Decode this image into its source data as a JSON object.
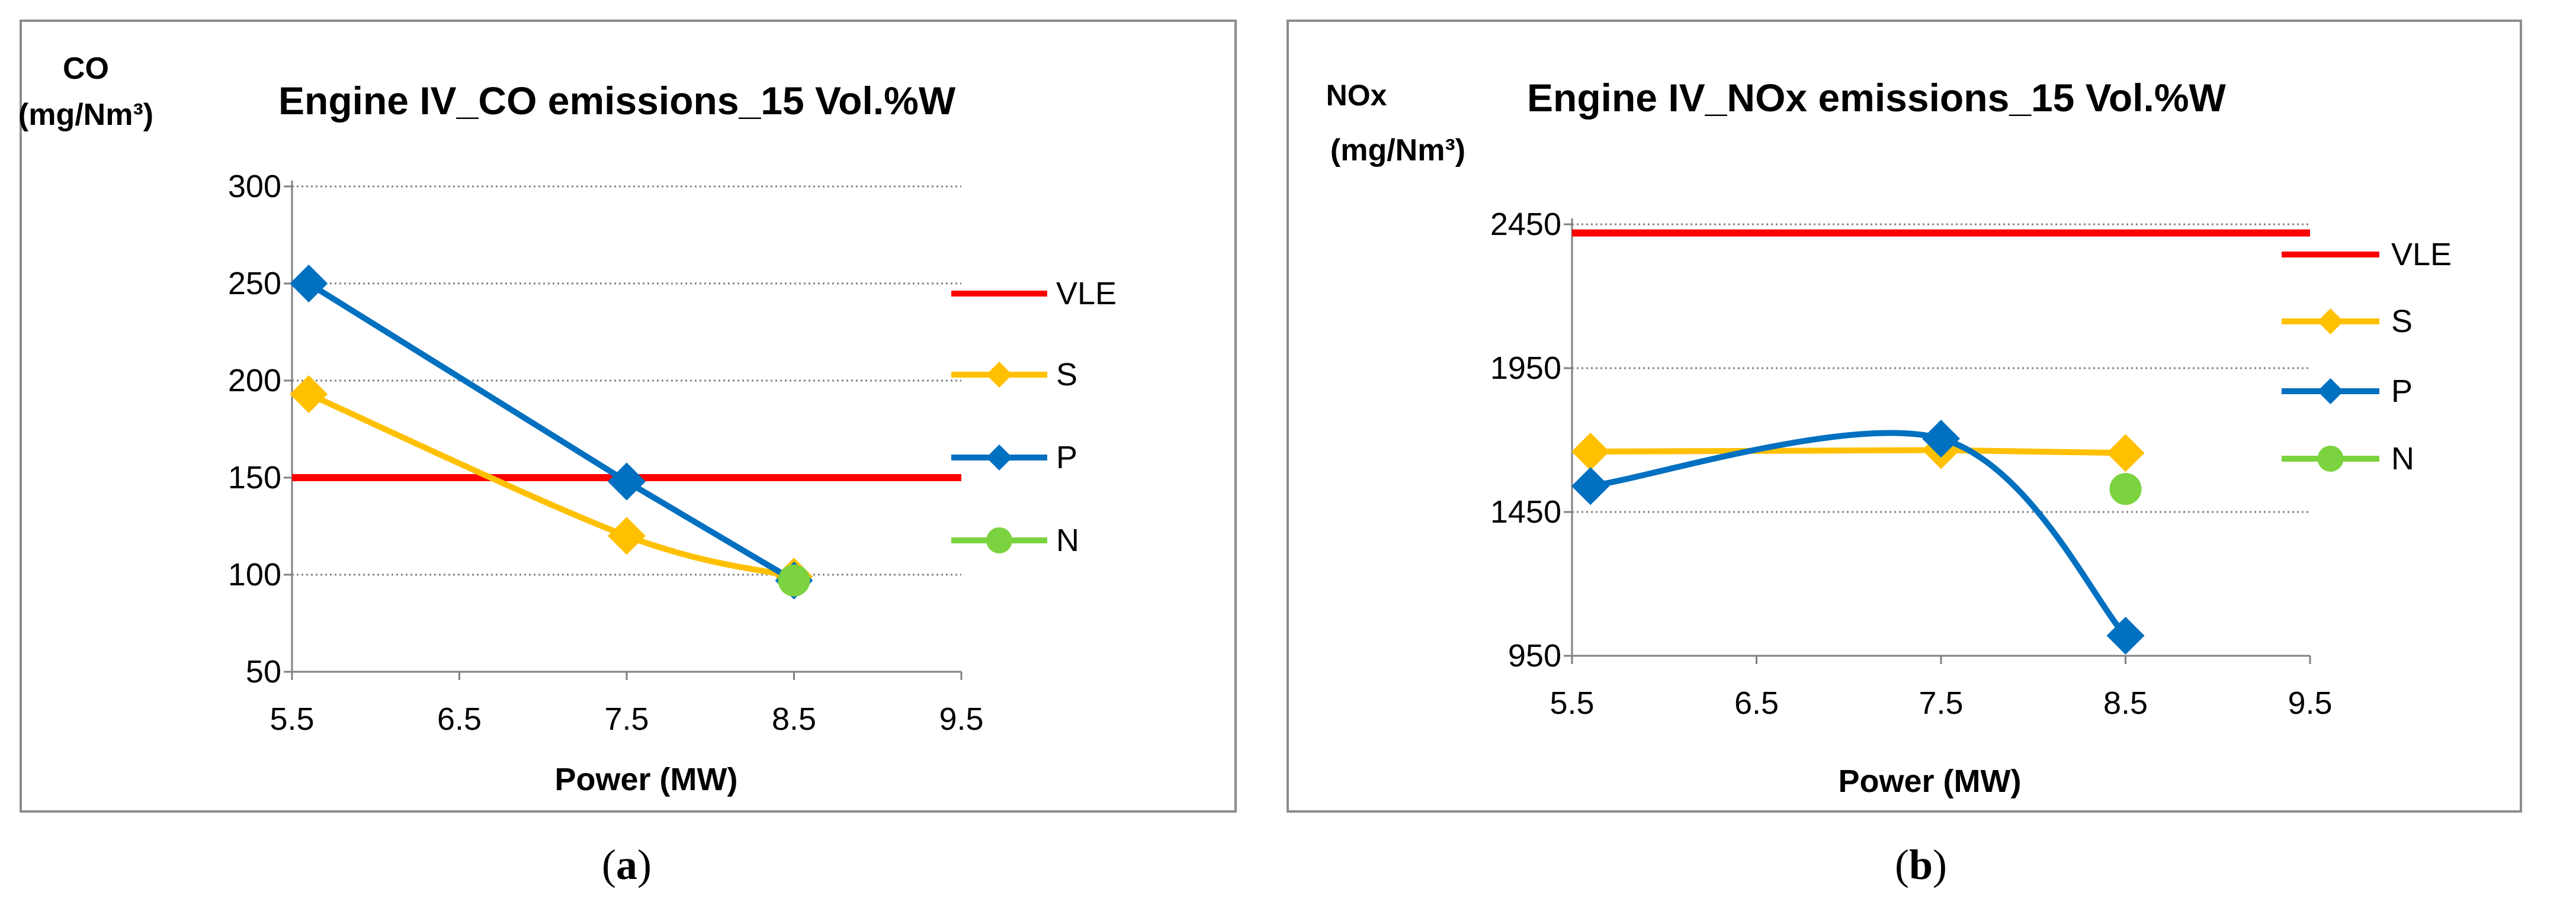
{
  "captions": {
    "a": "a",
    "b": "b"
  },
  "chart_data": [
    {
      "type": "line",
      "title": "Engine IV_CO emissions_15 Vol.%W",
      "ylabel_line1": "CO",
      "ylabel_line2": "(mg/Nm³)",
      "xlabel": "Power (MW)",
      "xlim": [
        5.5,
        9.5
      ],
      "ylim": [
        50,
        300
      ],
      "xticks": [
        "5.5",
        "6.5",
        "7.5",
        "8.5",
        "9.5"
      ],
      "yticks": [
        "50",
        "100",
        "150",
        "200",
        "250",
        "300"
      ],
      "series": [
        {
          "name": "VLE",
          "color": "#ff0000",
          "marker": "none",
          "smooth": false,
          "x": [
            5.5,
            9.5
          ],
          "y": [
            150,
            150
          ]
        },
        {
          "name": "S",
          "color": "#ffc000",
          "marker": "diamond",
          "smooth": true,
          "x": [
            5.6,
            7.5,
            8.5
          ],
          "y": [
            193,
            120,
            99
          ]
        },
        {
          "name": "P",
          "color": "#0070c0",
          "marker": "diamond",
          "smooth": false,
          "x": [
            5.6,
            7.5,
            8.5
          ],
          "y": [
            250,
            148,
            97
          ]
        },
        {
          "name": "N",
          "color": "#7ad33f",
          "marker": "circle",
          "smooth": false,
          "x": [
            8.5
          ],
          "y": [
            97
          ]
        }
      ]
    },
    {
      "type": "line",
      "title": "Engine IV_NOx emissions_15 Vol.%W",
      "ylabel_line1": "NOx",
      "ylabel_line2": "(mg/Nm³)",
      "xlabel": "Power (MW)",
      "xlim": [
        5.5,
        9.5
      ],
      "ylim": [
        950,
        2450
      ],
      "xticks": [
        "5.5",
        "6.5",
        "7.5",
        "8.5",
        "9.5"
      ],
      "yticks": [
        "950",
        "1450",
        "1950",
        "2450"
      ],
      "series": [
        {
          "name": "VLE",
          "color": "#ff0000",
          "marker": "none",
          "smooth": false,
          "x": [
            5.5,
            9.5
          ],
          "y": [
            2420,
            2420
          ]
        },
        {
          "name": "S",
          "color": "#ffc000",
          "marker": "diamond",
          "smooth": false,
          "x": [
            5.6,
            7.5,
            8.5
          ],
          "y": [
            1660,
            1665,
            1655
          ]
        },
        {
          "name": "P",
          "color": "#0070c0",
          "marker": "diamond",
          "smooth": true,
          "x": [
            5.6,
            7.5,
            8.5
          ],
          "y": [
            1540,
            1705,
            1020
          ]
        },
        {
          "name": "N",
          "color": "#7ad33f",
          "marker": "circle",
          "smooth": false,
          "x": [
            8.5
          ],
          "y": [
            1530
          ]
        }
      ]
    }
  ]
}
